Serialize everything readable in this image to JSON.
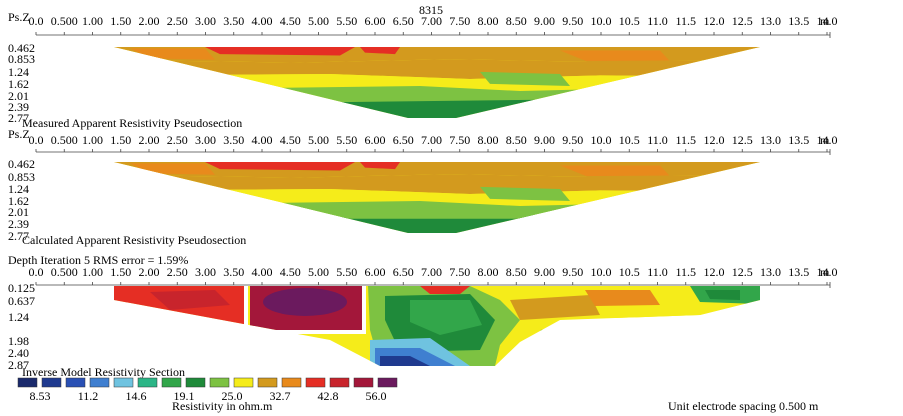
{
  "figure_title": "8315",
  "unit_note": "Unit electrode spacing 0.500 m",
  "colors": {
    "palette": [
      "#1a2a6c",
      "#1f3a8f",
      "#2950b4",
      "#3f7fd0",
      "#6fc3e0",
      "#2bb586",
      "#32a64a",
      "#1f8a3a",
      "#7dc242",
      "#f5ec1a",
      "#d39a1e",
      "#e88a1c",
      "#e52e24",
      "#c8242c",
      "#a3173a",
      "#6b1a5e"
    ]
  },
  "chart_data": [
    {
      "type": "heatmap",
      "title": "Measured Apparent Resistivity Pseudosection",
      "ylabel": "Ps.Z",
      "xunit": "m",
      "x_ticks": [
        "0.0",
        "0.500",
        "1.00",
        "1.50",
        "2.00",
        "2.50",
        "3.00",
        "3.50",
        "4.00",
        "4.50",
        "5.00",
        "5.50",
        "6.00",
        "6.50",
        "7.00",
        "7.50",
        "8.00",
        "8.50",
        "9.00",
        "9.50",
        "10.0",
        "10.5",
        "11.0",
        "11.5",
        "12.0",
        "12.5",
        "13.0",
        "13.5",
        "14.0"
      ],
      "y_ticks": [
        "0.462",
        "0.853",
        "1.24",
        "1.62",
        "2.01",
        "2.39",
        "2.77"
      ]
    },
    {
      "type": "heatmap",
      "title": "Calculated Apparent Resistivity Pseudosection",
      "ylabel": "Ps.Z",
      "xunit": "m",
      "x_ticks": [
        "0.0",
        "0.500",
        "1.00",
        "1.50",
        "2.00",
        "2.50",
        "3.00",
        "3.50",
        "4.00",
        "4.50",
        "5.00",
        "5.50",
        "6.00",
        "6.50",
        "7.00",
        "7.50",
        "8.00",
        "8.50",
        "9.00",
        "9.50",
        "10.0",
        "10.5",
        "11.0",
        "11.5",
        "12.0",
        "12.5",
        "13.0",
        "13.5",
        "14.0"
      ],
      "y_ticks": [
        "0.462",
        "0.853",
        "1.24",
        "1.62",
        "2.01",
        "2.39",
        "2.77"
      ]
    },
    {
      "type": "heatmap",
      "title": "Inverse Model Resistivity Section",
      "subtitle": "Depth Iteration 5 RMS error = 1.59%",
      "xunit": "m",
      "x_ticks": [
        "0.0",
        "0.500",
        "1.00",
        "1.50",
        "2.00",
        "2.50",
        "3.00",
        "3.50",
        "4.00",
        "4.50",
        "5.00",
        "5.50",
        "6.00",
        "6.50",
        "7.00",
        "7.50",
        "8.00",
        "8.50",
        "9.00",
        "9.50",
        "10.0",
        "10.5",
        "11.0",
        "11.5",
        "12.0",
        "12.5",
        "13.0",
        "13.5",
        "14.0"
      ],
      "y_ticks": [
        "0.125",
        "0.637",
        "1.24",
        "1.98",
        "2.40",
        "2.87"
      ]
    }
  ],
  "legend": {
    "title": "Resistivity in ohm.m",
    "labels": [
      "8.53",
      "11.2",
      "14.6",
      "19.1",
      "25.0",
      "32.7",
      "42.8",
      "56.0"
    ]
  }
}
